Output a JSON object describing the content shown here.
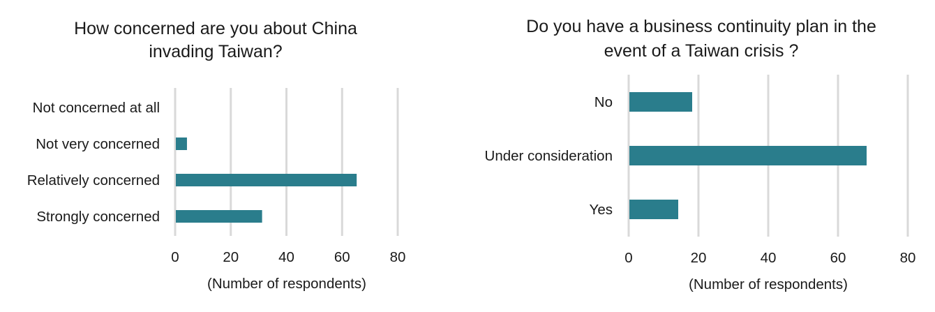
{
  "chart_data": [
    {
      "type": "bar",
      "orientation": "horizontal",
      "title": [
        "How concerned are you about China",
        "invading Taiwan?"
      ],
      "categories": [
        "Not concerned at all",
        "Not very concerned",
        "Relatively concerned",
        "Strongly concerned"
      ],
      "values": [
        0,
        4,
        65,
        31
      ],
      "xlabel": "(Number of respondents)",
      "ylabel": "",
      "xlim": [
        0,
        80
      ],
      "xticks": [
        0,
        20,
        40,
        60,
        80
      ],
      "grid": true,
      "bar_color": "#2a7d8c"
    },
    {
      "type": "bar",
      "orientation": "horizontal",
      "title": [
        "Do you have a business continuity plan in the",
        "event of a Taiwan crisis ?"
      ],
      "categories": [
        "No",
        "Under consideration",
        "Yes"
      ],
      "values": [
        18,
        68,
        14
      ],
      "xlabel": "(Number of respondents)",
      "ylabel": "",
      "xlim": [
        0,
        80
      ],
      "xticks": [
        0,
        20,
        40,
        60,
        80
      ],
      "grid": true,
      "bar_color": "#2a7d8c"
    }
  ]
}
